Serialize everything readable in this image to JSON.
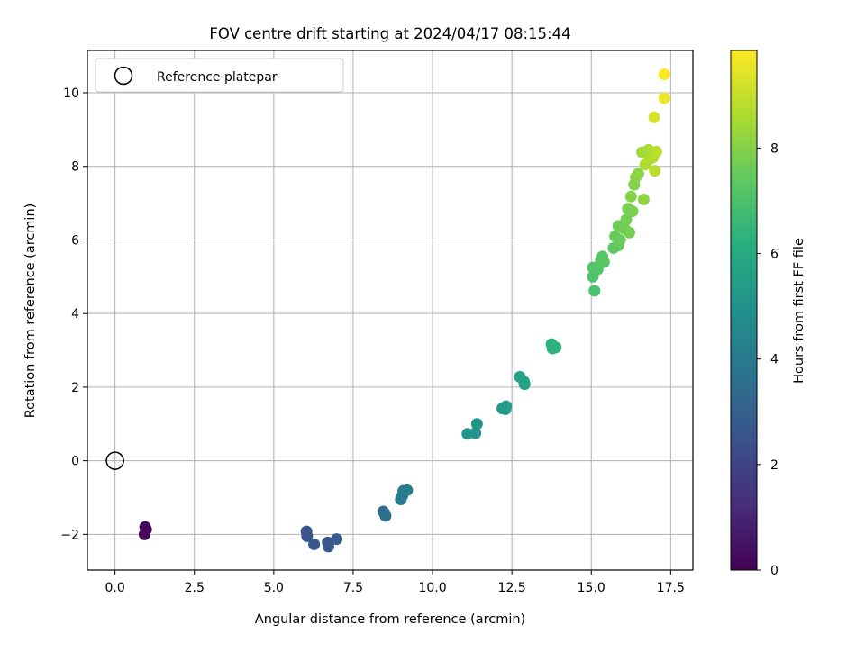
{
  "chart_data": {
    "type": "scatter",
    "title": "FOV centre drift starting at 2024/04/17 08:15:44",
    "xlabel": "Angular distance from reference (arcmin)",
    "ylabel": "Rotation from reference (arcmin)",
    "xlim": [
      -0.87,
      18.2
    ],
    "ylim": [
      -2.97,
      11.15
    ],
    "xticks": [
      0.0,
      2.5,
      5.0,
      7.5,
      10.0,
      12.5,
      15.0,
      17.5
    ],
    "xtick_labels": [
      "0.0",
      "2.5",
      "5.0",
      "7.5",
      "10.0",
      "12.5",
      "15.0",
      "17.5"
    ],
    "yticks": [
      -2,
      0,
      2,
      4,
      6,
      8,
      10
    ],
    "ytick_labels": [
      "−2",
      "0",
      "2",
      "4",
      "6",
      "8",
      "10"
    ],
    "grid": true,
    "legend": {
      "position": "top-left",
      "entries": [
        "Reference platepar"
      ]
    },
    "reference_point": {
      "x": 0.0,
      "y": 0.0
    },
    "colorbar": {
      "label": "Hours from first FF file",
      "colormap": "viridis",
      "range": [
        0,
        9.85
      ],
      "ticks": [
        0,
        2,
        4,
        6,
        8
      ],
      "tick_labels": [
        "0",
        "2",
        "4",
        "6",
        "8"
      ]
    },
    "points": [
      {
        "x": 0.95,
        "y": -1.8,
        "h": 0.15
      },
      {
        "x": 0.98,
        "y": -1.87,
        "h": 0.2
      },
      {
        "x": 0.93,
        "y": -2.0,
        "h": 0.25
      },
      {
        "x": 6.03,
        "y": -1.92,
        "h": 2.5
      },
      {
        "x": 6.05,
        "y": -2.05,
        "h": 2.55
      },
      {
        "x": 6.27,
        "y": -2.27,
        "h": 2.6
      },
      {
        "x": 6.7,
        "y": -2.22,
        "h": 2.7
      },
      {
        "x": 6.72,
        "y": -2.33,
        "h": 2.75
      },
      {
        "x": 6.98,
        "y": -2.13,
        "h": 2.8
      },
      {
        "x": 8.45,
        "y": -1.38,
        "h": 3.5
      },
      {
        "x": 8.5,
        "y": -1.45,
        "h": 3.55
      },
      {
        "x": 8.52,
        "y": -1.5,
        "h": 3.6
      },
      {
        "x": 9.0,
        "y": -1.05,
        "h": 4.0
      },
      {
        "x": 9.05,
        "y": -0.95,
        "h": 4.05
      },
      {
        "x": 9.08,
        "y": -0.82,
        "h": 4.1
      },
      {
        "x": 9.2,
        "y": -0.8,
        "h": 4.15
      },
      {
        "x": 11.1,
        "y": 0.73,
        "h": 5.0
      },
      {
        "x": 11.35,
        "y": 0.75,
        "h": 5.05
      },
      {
        "x": 11.4,
        "y": 1.0,
        "h": 5.1
      },
      {
        "x": 12.2,
        "y": 1.42,
        "h": 5.3
      },
      {
        "x": 12.3,
        "y": 1.4,
        "h": 5.35
      },
      {
        "x": 12.32,
        "y": 1.48,
        "h": 5.4
      },
      {
        "x": 12.75,
        "y": 2.28,
        "h": 5.6
      },
      {
        "x": 12.9,
        "y": 2.08,
        "h": 5.65
      },
      {
        "x": 12.88,
        "y": 2.15,
        "h": 5.7
      },
      {
        "x": 13.75,
        "y": 3.17,
        "h": 6.2
      },
      {
        "x": 13.78,
        "y": 3.05,
        "h": 6.25
      },
      {
        "x": 13.88,
        "y": 3.08,
        "h": 6.3
      },
      {
        "x": 15.1,
        "y": 4.62,
        "h": 7.0
      },
      {
        "x": 15.05,
        "y": 5.0,
        "h": 7.05
      },
      {
        "x": 15.05,
        "y": 5.25,
        "h": 7.1
      },
      {
        "x": 15.2,
        "y": 5.2,
        "h": 7.15
      },
      {
        "x": 15.3,
        "y": 5.45,
        "h": 7.2
      },
      {
        "x": 15.35,
        "y": 5.55,
        "h": 7.25
      },
      {
        "x": 15.4,
        "y": 5.4,
        "h": 7.3
      },
      {
        "x": 15.7,
        "y": 5.78,
        "h": 7.4
      },
      {
        "x": 15.85,
        "y": 5.85,
        "h": 7.45
      },
      {
        "x": 15.75,
        "y": 6.1,
        "h": 7.5
      },
      {
        "x": 15.9,
        "y": 6.0,
        "h": 7.55
      },
      {
        "x": 15.85,
        "y": 6.38,
        "h": 7.6
      },
      {
        "x": 16.05,
        "y": 6.3,
        "h": 7.65
      },
      {
        "x": 16.1,
        "y": 6.55,
        "h": 7.7
      },
      {
        "x": 16.2,
        "y": 6.2,
        "h": 7.75
      },
      {
        "x": 16.15,
        "y": 6.85,
        "h": 7.8
      },
      {
        "x": 16.3,
        "y": 6.78,
        "h": 7.85
      },
      {
        "x": 16.25,
        "y": 7.18,
        "h": 7.95
      },
      {
        "x": 16.35,
        "y": 7.5,
        "h": 8.0
      },
      {
        "x": 16.4,
        "y": 7.7,
        "h": 8.05
      },
      {
        "x": 16.48,
        "y": 7.8,
        "h": 8.1
      },
      {
        "x": 16.65,
        "y": 7.1,
        "h": 8.15
      },
      {
        "x": 16.6,
        "y": 8.38,
        "h": 8.4
      },
      {
        "x": 16.75,
        "y": 8.35,
        "h": 8.5
      },
      {
        "x": 16.8,
        "y": 8.45,
        "h": 8.55
      },
      {
        "x": 16.7,
        "y": 8.05,
        "h": 8.6
      },
      {
        "x": 16.85,
        "y": 8.2,
        "h": 8.65
      },
      {
        "x": 16.95,
        "y": 8.25,
        "h": 8.7
      },
      {
        "x": 17.0,
        "y": 7.88,
        "h": 8.75
      },
      {
        "x": 17.05,
        "y": 8.4,
        "h": 8.8
      },
      {
        "x": 16.98,
        "y": 9.33,
        "h": 9.3
      },
      {
        "x": 17.3,
        "y": 9.85,
        "h": 9.6
      },
      {
        "x": 17.3,
        "y": 10.5,
        "h": 9.8
      }
    ]
  }
}
